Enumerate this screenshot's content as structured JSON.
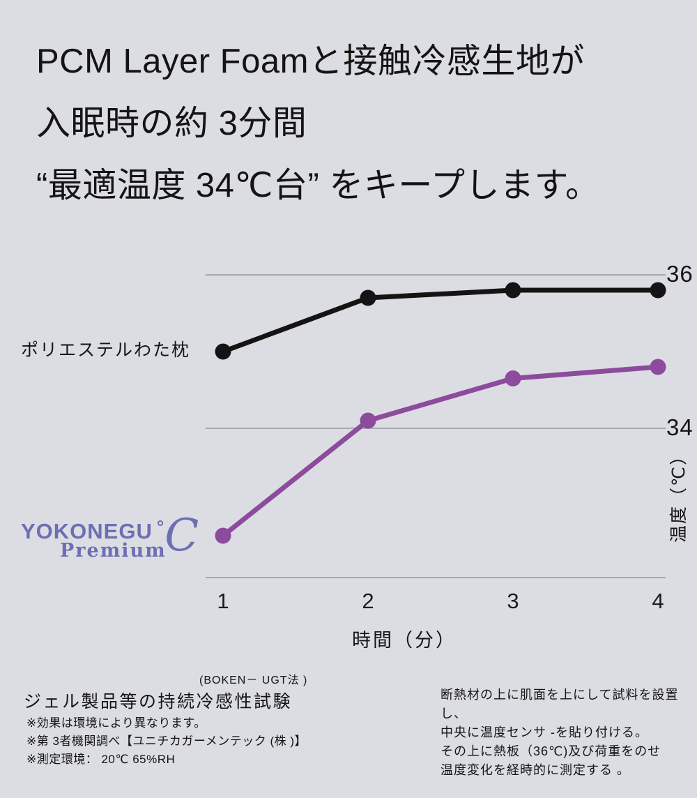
{
  "page": {
    "background": "#dcdde2"
  },
  "headline": {
    "lines": [
      "PCM Layer Foamと接触冷感生地が",
      "入眠時の約 3分間",
      "“最適温度 34℃台” をキープします。"
    ]
  },
  "logo": {
    "brand": "YOKONEGU",
    "degree": "°",
    "script_c": "C",
    "sub": "Premium",
    "color": "#6c6fb4"
  },
  "chart_data": {
    "type": "line",
    "title": "ジェル製品等の持続冷感性試験",
    "subtitle": "(BOKEN－ UGT法 )",
    "x": [
      1,
      2,
      3,
      4
    ],
    "x_tick_labels": [
      "1",
      "2",
      "3",
      "4"
    ],
    "xlabel": "時間（分）",
    "ylabel": "温度（℃）",
    "y_ticks": [
      36,
      34
    ],
    "y_tick_labels": [
      "36",
      "34"
    ],
    "ylim": [
      32.1,
      36.7
    ],
    "grid": "horizontal-gridlines-at-ticks",
    "legend": "inline-labels-next-to-lines",
    "series": [
      {
        "name": "ポリエステルわた枕",
        "color": "#141414",
        "values": [
          35.0,
          35.7,
          35.8,
          35.8
        ]
      },
      {
        "name": "YOKONEGU ℃ Premium",
        "color": "#8d4b9d",
        "values": [
          32.6,
          34.1,
          34.65,
          34.8
        ]
      }
    ]
  },
  "footnotes": {
    "left_notes": [
      "※効果は環境により異なります。",
      "※第 3者機関調べ【ユニチカガーメンテック (株 )】",
      "※測定環境： 20℃ 65%RH"
    ],
    "right_lines": [
      "断熱材の上に肌面を上にして試料を設置し、",
      "中央に温度センサ -を貼り付ける。",
      "その上に熱板（36℃)及び荷重をのせ",
      "温度変化を経時的に測定する 。"
    ]
  },
  "colors": {
    "grid": "#a6a8ae",
    "text": "#141414",
    "series_black": "#141414",
    "series_purple": "#8d4b9d",
    "logo": "#6c6fb4"
  }
}
